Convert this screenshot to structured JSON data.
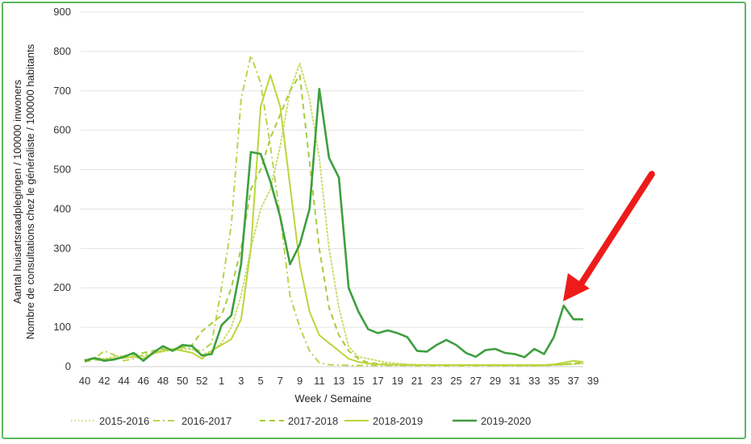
{
  "colors": {
    "2015-2016": "#c9dd6a",
    "2016-2017": "#b9d44c",
    "2017-2018": "#a6cc3a",
    "2018-2019": "#bcd53c",
    "2019-2020": "#3e9e3f",
    "frame": "#5cb85c",
    "grid": "#e3e3e3",
    "arrow": "#ee1b1b"
  },
  "annotation": {
    "icon": "red-arrow-icon"
  },
  "chart_data": {
    "type": "line",
    "xlabel": "Week / Semaine",
    "ylabel_lines": [
      "Aantal huisartsraadplegingen / 100000 inwoners",
      "Nombre de consultations chez le généraliste / 100000 habitants"
    ],
    "ylim": [
      0,
      900
    ],
    "yticks": [
      0,
      100,
      200,
      300,
      400,
      500,
      600,
      700,
      800,
      900
    ],
    "grid": "horizontal",
    "legend_position": "bottom",
    "x_tick_labels": [
      "40",
      "42",
      "44",
      "46",
      "48",
      "50",
      "52",
      "1",
      "3",
      "5",
      "7",
      "9",
      "11",
      "13",
      "15",
      "17",
      "19",
      "21",
      "23",
      "25",
      "27",
      "29",
      "31",
      "33",
      "35",
      "37",
      "39"
    ],
    "x": [
      40,
      41,
      42,
      43,
      44,
      45,
      46,
      47,
      48,
      49,
      50,
      51,
      52,
      1,
      2,
      3,
      4,
      5,
      6,
      7,
      8,
      9,
      10,
      11,
      12,
      13,
      14,
      15,
      16,
      17,
      18,
      19,
      20,
      21,
      22,
      23,
      24,
      25,
      26,
      27,
      28,
      29,
      30,
      31,
      32,
      33,
      34,
      35,
      36,
      37,
      38,
      39
    ],
    "series": [
      {
        "name": "2015-2016",
        "dash": "dotted",
        "values": [
          18,
          22,
          20,
          25,
          28,
          30,
          26,
          32,
          38,
          42,
          45,
          44,
          30,
          40,
          60,
          100,
          180,
          300,
          400,
          450,
          560,
          700,
          770,
          680,
          530,
          300,
          150,
          50,
          25,
          20,
          15,
          10,
          8,
          6,
          5,
          5,
          4,
          4,
          4,
          4,
          4,
          4,
          3,
          3,
          3,
          3,
          3,
          3,
          4,
          5,
          6,
          8
        ]
      },
      {
        "name": "2016-2017",
        "dash": "dashdot",
        "values": [
          14,
          20,
          40,
          30,
          15,
          20,
          30,
          35,
          40,
          45,
          50,
          45,
          40,
          60,
          200,
          360,
          680,
          790,
          720,
          560,
          380,
          180,
          100,
          40,
          10,
          5,
          4,
          3,
          3,
          3,
          3,
          3,
          3,
          3,
          2,
          2,
          2,
          2,
          2,
          2,
          2,
          2,
          2,
          2,
          2,
          2,
          2,
          3,
          4,
          6,
          8,
          10
        ]
      },
      {
        "name": "2017-2018",
        "dash": "dashed",
        "values": [
          12,
          18,
          15,
          20,
          25,
          30,
          35,
          40,
          45,
          40,
          50,
          55,
          90,
          110,
          130,
          200,
          300,
          450,
          500,
          580,
          640,
          700,
          740,
          520,
          300,
          150,
          80,
          40,
          20,
          10,
          8,
          6,
          5,
          5,
          4,
          4,
          4,
          4,
          4,
          4,
          4,
          4,
          4,
          4,
          4,
          4,
          4,
          4,
          5,
          6,
          8,
          10
        ]
      },
      {
        "name": "2018-2019",
        "dash": "solid",
        "values": [
          15,
          20,
          18,
          20,
          22,
          25,
          20,
          35,
          40,
          45,
          40,
          35,
          20,
          40,
          55,
          70,
          120,
          300,
          660,
          740,
          660,
          460,
          260,
          140,
          80,
          60,
          40,
          20,
          12,
          8,
          6,
          5,
          5,
          4,
          4,
          4,
          4,
          4,
          4,
          4,
          4,
          4,
          4,
          4,
          4,
          4,
          4,
          4,
          6,
          10,
          15,
          12
        ]
      },
      {
        "name": "2019-2020",
        "dash": "solid",
        "values": [
          15,
          22,
          15,
          18,
          25,
          35,
          15,
          35,
          52,
          40,
          55,
          52,
          28,
          32,
          105,
          130,
          260,
          545,
          540,
          470,
          380,
          260,
          310,
          400,
          705,
          530,
          480,
          200,
          140,
          95,
          85,
          92,
          85,
          75,
          40,
          38,
          55,
          68,
          55,
          35,
          25,
          42,
          45,
          35,
          32,
          24,
          45,
          32,
          75,
          155,
          120,
          120
        ]
      }
    ]
  }
}
